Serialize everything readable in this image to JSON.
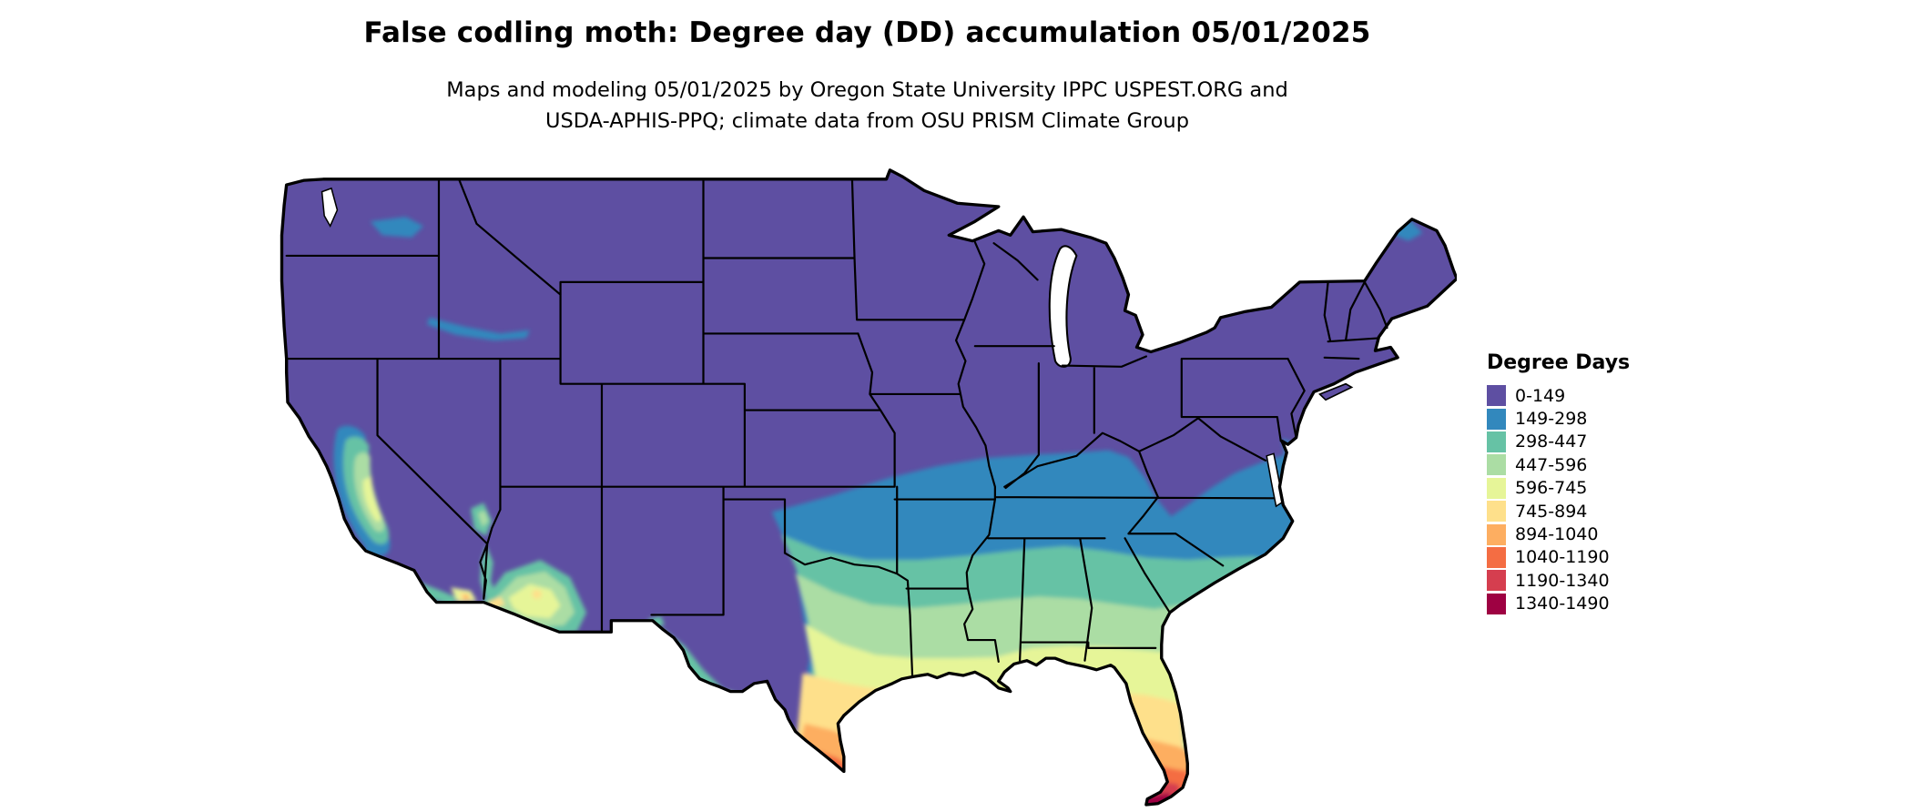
{
  "title": "False codling moth: Degree day (DD) accumulation 05/01/2025",
  "subtitle": {
    "line1": "Maps and modeling 05/01/2025 by Oregon State University IPPC USPEST.ORG and",
    "line2": "USDA-APHIS-PPQ; climate data from OSU PRISM Climate Group"
  },
  "legend": {
    "title": "Degree Days",
    "items": [
      {
        "label": "0-149",
        "color": "#5e4fa2"
      },
      {
        "label": "149-298",
        "color": "#3288bd"
      },
      {
        "label": "298-447",
        "color": "#66c2a5"
      },
      {
        "label": "447-596",
        "color": "#abdda4"
      },
      {
        "label": "596-745",
        "color": "#e6f598"
      },
      {
        "label": "745-894",
        "color": "#fee08b"
      },
      {
        "label": "894-1040",
        "color": "#fdae61"
      },
      {
        "label": "1040-1190",
        "color": "#f46d43"
      },
      {
        "label": "1190-1340",
        "color": "#d53e4f"
      },
      {
        "label": "1340-1490",
        "color": "#9e0142"
      }
    ]
  }
}
